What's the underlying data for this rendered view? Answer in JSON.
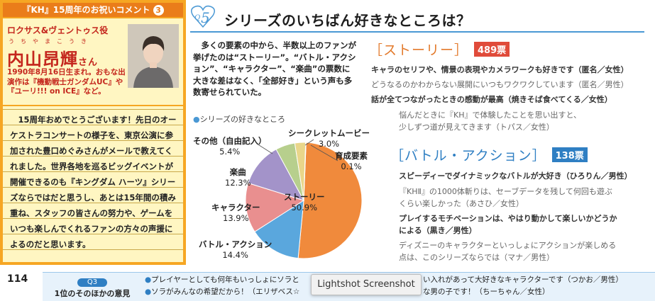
{
  "left": {
    "header": "『KH』15周年のお祝いコメント",
    "header_num": "3",
    "role": "ロクサス&ヴェントゥス役",
    "name_ruby": "うちやまこうき",
    "name": "内山昂輝",
    "name_suffix": "さん",
    "bio": "1990年8月16日生まれ。おもな出演作は『機動戦士ガンダムUC』や『ユーリ!!! on ICE』など。",
    "message": "15周年おめでとうございます！先日のオーケストラコンサートの様子を、東京公演に参加された豊口めぐみさんがメールで教えてくれました。世界各地を巡るビッグイベントが開催できるのも『キングダム ハーツ』シリーズならではだと思うし、あとは15年間の積み重ね、スタッフの皆さんの努力や、ゲームをいつも楽しんでくれるファンの方々の声援によるのだと思います。"
  },
  "question": {
    "badge_q": "Q",
    "badge_num": "5",
    "title": "シリーズのいちばん好きなところは？",
    "intro": "多くの要素の中から、半数以上のファンが挙げたのは“ストーリー”。“バトル・アクション”、“キャラクター”、“楽曲”の票数に大きな差はなく、「全部好き」という声も多数寄せられていた。",
    "legend_title": "シリーズの好きなところ"
  },
  "chart_data": {
    "type": "pie",
    "title": "シリーズの好きなところ",
    "slices": [
      {
        "label": "ストーリー",
        "value": 50.9,
        "display": "50.9%",
        "color": "#f08a3c"
      },
      {
        "label": "バトル・アクション",
        "value": 14.4,
        "display": "14.4%",
        "color": "#5aa7dd"
      },
      {
        "label": "キャラクター",
        "value": 13.9,
        "display": "13.9%",
        "color": "#e98f8f"
      },
      {
        "label": "楽曲",
        "value": 12.3,
        "display": "12.3%",
        "color": "#a393c9"
      },
      {
        "label": "その他（自由記入）",
        "value": 5.4,
        "display": "5.4%",
        "color": "#b7cf8d"
      },
      {
        "label": "シークレットムービー",
        "value": 3.0,
        "display": "3.0%",
        "color": "#e9d68a"
      },
      {
        "label": "育成要素",
        "value": 0.1,
        "display": "0.1%",
        "color": "#7fc8c8"
      }
    ]
  },
  "sections": [
    {
      "title": "［ストーリー］",
      "votes": "489票",
      "comments": [
        "キャラのセリフや、情景の表現やカメラワークも好きです（匿名／女性）",
        "どうなるのかわからない展開にいつもワクワクしています（匿名／男性）",
        "話が全てつながったときの感動が最高（焼きそば食べてくる／女性）",
        "悩んだときに『KH』で体験したことを思い出すと、",
        "少しずつ道が見えてきます（トパス／女性）"
      ]
    },
    {
      "title": "［バトル・アクション］",
      "votes": "138票",
      "comments": [
        "スピーディーでダイナミックなバトルが大好き（ひろりん／男性）",
        "『KHⅡ』の1000体斬りは、セーブデータを残して何回も遊ぶ",
        "くらい楽しかった（あさひ／女性）",
        "プレイするモチベーションは、やはり動かして楽しいかどうか",
        "による（黒き／男性）",
        "ディズニーのキャラクターといっしょにアクションが楽しめる",
        "点は、このシリーズならでは（マナ／男性）"
      ]
    }
  ],
  "footer": {
    "page_number": "114",
    "label_q": "Q3",
    "label_text": "1位のそのほかの意見",
    "lines": [
      "プレイヤーとしても何年もいっしょにソラと",
      "ソラがみんなの希望だから！（エリザベス☆",
      "い入れがあって大好きなキャラクターです（つかお／男性）",
      "な男の子です！（ちーちゃん／女性）"
    ],
    "tooltip": "Lightshot Screenshot"
  }
}
